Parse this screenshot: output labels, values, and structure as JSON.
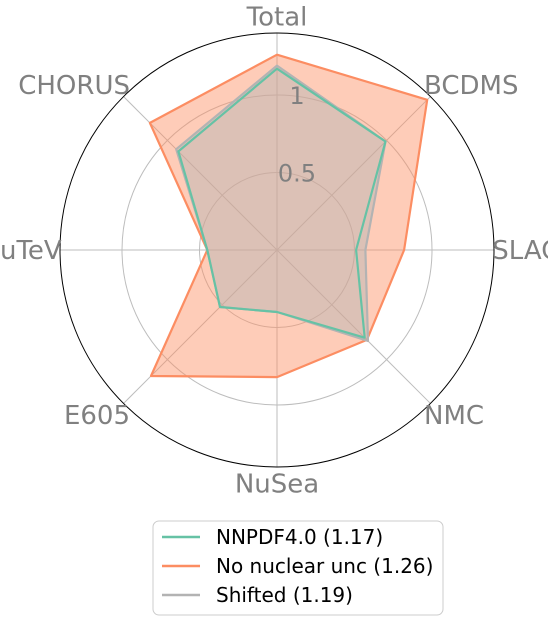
{
  "chart_data": {
    "type": "radar",
    "axes": [
      "Total",
      "BCDMS",
      "SLAC",
      "NMC",
      "NuSea",
      "E605",
      "NuTeV",
      "CHORUS"
    ],
    "rlim": [
      0,
      1.4
    ],
    "rticks": [
      0.5,
      1
    ],
    "rtick_labels": [
      "0.5",
      "1"
    ],
    "grid": true,
    "legend": "bottom",
    "series": [
      {
        "name": "No nuclear unc (1.26)",
        "color": "#fc8d62",
        "fill": true,
        "values": [
          1.26,
          1.37,
          0.82,
          0.82,
          0.82,
          1.15,
          0.45,
          1.16
        ]
      },
      {
        "name": "Shifted (1.19)",
        "color": "#b3b3b3",
        "fill": true,
        "values": [
          1.19,
          0.99,
          0.57,
          0.83,
          0.4,
          0.52,
          0.45,
          0.92
        ]
      },
      {
        "name": "NNPDF4.0 (1.17)",
        "color": "#66c2a5",
        "fill": false,
        "values": [
          1.17,
          0.99,
          0.51,
          0.8,
          0.4,
          0.52,
          0.45,
          0.9
        ]
      }
    ],
    "legend_entries": [
      {
        "name": "NNPDF4.0 (1.17)",
        "color": "#66c2a5"
      },
      {
        "name": "No nuclear unc (1.26)",
        "color": "#fc8d62"
      },
      {
        "name": "Shifted (1.19)",
        "color": "#b3b3b3"
      }
    ]
  }
}
